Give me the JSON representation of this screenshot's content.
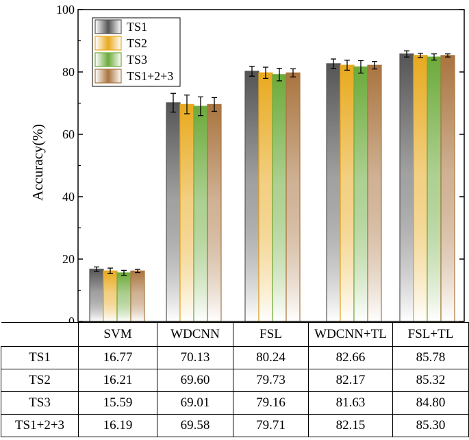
{
  "chart_data": {
    "type": "bar",
    "title": "",
    "xlabel": "",
    "ylabel": "Accuracy(%)",
    "ylim": [
      0,
      100
    ],
    "yticks": [
      "0",
      "20",
      "40",
      "60",
      "80",
      "100"
    ],
    "categories": [
      "SVM",
      "WDCNN",
      "FSL",
      "WDCNN+TL",
      "FSL+TL"
    ],
    "series": [
      {
        "name": "TS1",
        "values": [
          16.77,
          70.13,
          80.24,
          82.66,
          85.78
        ],
        "errors": [
          0.7,
          3.0,
          1.6,
          1.5,
          1.0
        ],
        "color": "#555555"
      },
      {
        "name": "TS2",
        "values": [
          16.21,
          69.6,
          79.73,
          82.17,
          85.32
        ],
        "errors": [
          0.9,
          3.0,
          1.8,
          1.6,
          0.7
        ],
        "color": "#e8a91e"
      },
      {
        "name": "TS3",
        "values": [
          15.59,
          69.01,
          79.16,
          81.63,
          84.8
        ],
        "errors": [
          0.8,
          3.0,
          2.0,
          2.0,
          1.0
        ],
        "color": "#6caa3a"
      },
      {
        "name": "TS1+2+3",
        "values": [
          16.19,
          69.58,
          79.71,
          82.15,
          85.3
        ],
        "errors": [
          0.5,
          2.2,
          1.3,
          1.2,
          0.5
        ],
        "color": "#a9743f"
      }
    ],
    "legend_position": "top-left"
  },
  "table": {
    "header": [
      "",
      "SVM",
      "WDCNN",
      "FSL",
      "WDCNN+TL",
      "FSL+TL"
    ],
    "rows": [
      {
        "label": "TS1",
        "cells": [
          "16.77",
          "70.13",
          "80.24",
          "82.66",
          "85.78"
        ]
      },
      {
        "label": "TS2",
        "cells": [
          "16.21",
          "69.60",
          "79.73",
          "82.17",
          "85.32"
        ]
      },
      {
        "label": "TS3",
        "cells": [
          "15.59",
          "69.01",
          "79.16",
          "81.63",
          "84.80"
        ]
      },
      {
        "label": "TS1+2+3",
        "cells": [
          "16.19",
          "69.58",
          "79.71",
          "82.15",
          "85.30"
        ]
      }
    ]
  }
}
